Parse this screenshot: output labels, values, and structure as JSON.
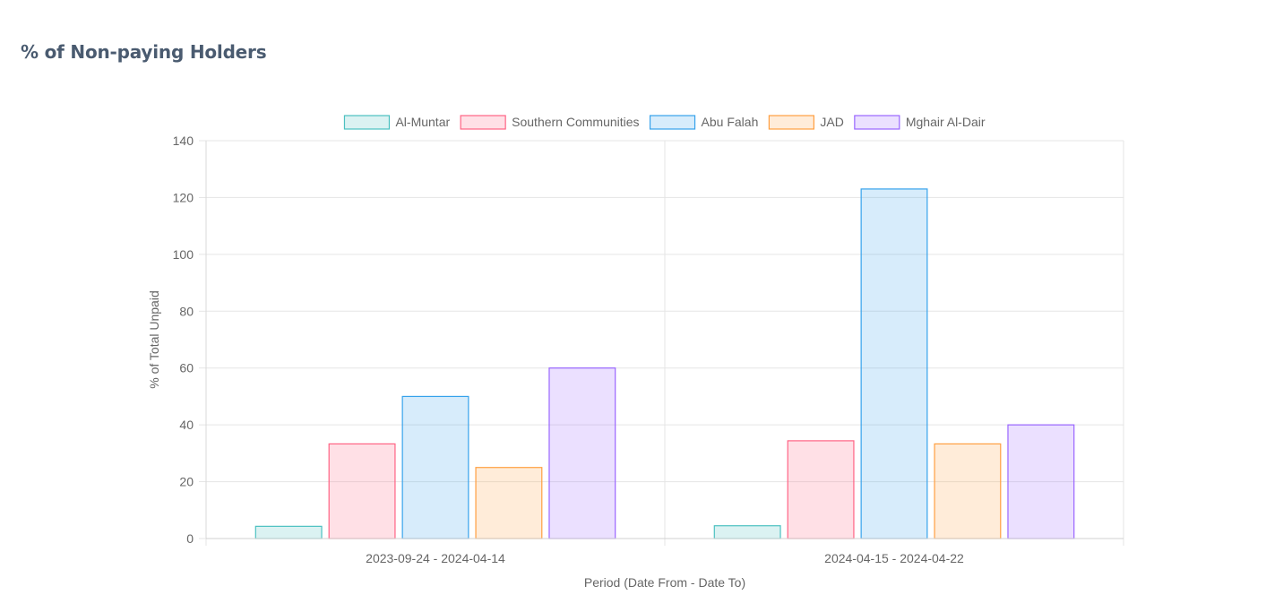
{
  "page": {
    "title": "% of Non-paying Holders"
  },
  "chart_data": {
    "type": "bar",
    "categories": [
      "2023-09-24 - 2024-04-14",
      "2024-04-15 - 2024-04-22"
    ],
    "series": [
      {
        "name": "Al-Muntar",
        "values": [
          4.3,
          4.5
        ],
        "color": "#4bc0c0",
        "fill": "rgba(75,192,192,0.2)"
      },
      {
        "name": "Southern Communities",
        "values": [
          33.3,
          34.4
        ],
        "color": "#ff6384",
        "fill": "rgba(255,99,132,0.2)"
      },
      {
        "name": "Abu Falah",
        "values": [
          50,
          123
        ],
        "color": "#36a2eb",
        "fill": "rgba(54,162,235,0.2)"
      },
      {
        "name": "JAD",
        "values": [
          25,
          33.3
        ],
        "color": "#ff9f40",
        "fill": "rgba(255,159,64,0.2)"
      },
      {
        "name": "Mghair Al-Dair",
        "values": [
          60,
          40
        ],
        "color": "#9966ff",
        "fill": "rgba(153,102,255,0.2)"
      }
    ],
    "xlabel": "Period (Date From - Date To)",
    "ylabel": "% of Total Unpaid",
    "ylim": [
      0,
      140
    ],
    "yticks": [
      0,
      20,
      40,
      60,
      80,
      100,
      120,
      140
    ],
    "grid": true,
    "legend_position": "top"
  }
}
